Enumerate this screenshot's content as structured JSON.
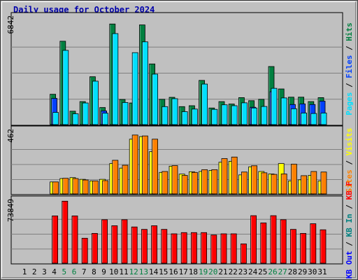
{
  "title": "Daily usage for October 2024",
  "colors": {
    "hits": "#008040",
    "files": "#0040ff",
    "pages": "#00e0ff",
    "visits": "#ffff00",
    "sites": "#ff8000",
    "kbin": "#008080",
    "kbout": "#0000ff",
    "kbf": "#ff0000",
    "title": "#0000aa",
    "day_weekday": "#000000",
    "day_weekend": "#008040"
  },
  "chart_data": [
    {
      "type": "bar",
      "name": "hits-files-pages",
      "categories": [
        "1",
        "2",
        "3",
        "4",
        "5",
        "6",
        "7",
        "8",
        "9",
        "10",
        "11",
        "12",
        "13",
        "14",
        "15",
        "16",
        "17",
        "18",
        "19",
        "20",
        "21",
        "22",
        "23",
        "24",
        "25",
        "26",
        "27",
        "28",
        "29",
        "30",
        "31"
      ],
      "weekend_days": [
        "5",
        "6",
        "12",
        "13",
        "19",
        "20",
        "26",
        "27"
      ],
      "ymax_label": "6842",
      "ylim": [
        0,
        6842
      ],
      "legend": [
        {
          "label": "Hits",
          "color_key": "hits"
        },
        {
          "label": "Files",
          "color_key": "files"
        },
        {
          "label": "Pages",
          "color_key": "pages"
        }
      ],
      "separators": [
        "/",
        "/"
      ],
      "series": [
        {
          "name": "Hits",
          "values": [
            0,
            0,
            0,
            1990,
            5470,
            880,
            1510,
            3140,
            1120,
            6600,
            1650,
            1420,
            6540,
            3980,
            1660,
            1790,
            1180,
            1240,
            2900,
            1090,
            1510,
            1350,
            1770,
            1570,
            1660,
            3810,
            2340,
            1800,
            1800,
            1510,
            1770
          ]
        },
        {
          "name": "Files",
          "values": [
            0,
            0,
            0,
            1720,
            0,
            0,
            0,
            0,
            900,
            0,
            0,
            0,
            0,
            0,
            0,
            0,
            0,
            0,
            0,
            0,
            0,
            0,
            0,
            1140,
            0,
            2160,
            0,
            1320,
            1360,
            1320,
            1540
          ]
        },
        {
          "name": "Pages",
          "values": [
            0,
            0,
            0,
            800,
            4870,
            710,
            1420,
            2850,
            750,
            5970,
            1450,
            4720,
            5430,
            3310,
            1180,
            1700,
            850,
            1020,
            2660,
            1000,
            1300,
            1240,
            1430,
            1090,
            1190,
            2380,
            1750,
            1040,
            760,
            730,
            760
          ]
        }
      ]
    },
    {
      "type": "bar",
      "name": "visits-sites",
      "categories": [
        "1",
        "2",
        "3",
        "4",
        "5",
        "6",
        "7",
        "8",
        "9",
        "10",
        "11",
        "12",
        "13",
        "14",
        "15",
        "16",
        "17",
        "18",
        "19",
        "20",
        "21",
        "22",
        "23",
        "24",
        "25",
        "26",
        "27",
        "28",
        "29",
        "30",
        "31"
      ],
      "ymax_label": "462",
      "ylim": [
        0,
        462
      ],
      "legend": [
        {
          "label": "Visits",
          "color_key": "visits"
        },
        {
          "label": "Sites",
          "color_key": "sites"
        }
      ],
      "separators": [
        "/"
      ],
      "series": [
        {
          "name": "Visits",
          "values": [
            0,
            0,
            0,
            92,
            118,
            125,
            112,
            100,
            112,
            233,
            198,
            420,
            440,
            324,
            165,
            213,
            152,
            170,
            172,
            180,
            243,
            250,
            146,
            208,
            172,
            153,
            233,
            100,
            108,
            142,
            100
          ]
        },
        {
          "name": "Sites",
          "values": [
            0,
            0,
            0,
            92,
            120,
            118,
            107,
            100,
            102,
            258,
            220,
            452,
            445,
            420,
            172,
            217,
            142,
            165,
            186,
            186,
            271,
            283,
            168,
            216,
            162,
            150,
            153,
            228,
            140,
            172,
            168
          ]
        }
      ]
    },
    {
      "type": "bar",
      "name": "kbf-kbin-kbout",
      "categories": [
        "1",
        "2",
        "3",
        "4",
        "5",
        "6",
        "7",
        "8",
        "9",
        "10",
        "11",
        "12",
        "13",
        "14",
        "15",
        "16",
        "17",
        "18",
        "19",
        "20",
        "21",
        "22",
        "23",
        "24",
        "25",
        "26",
        "27",
        "28",
        "29",
        "30",
        "31"
      ],
      "ymax_label": "73849",
      "ylim": [
        0,
        73849
      ],
      "legend": [
        {
          "label": "KB F",
          "color_key": "kbf"
        },
        {
          "label": "KB In",
          "color_key": "kbin"
        },
        {
          "label": "KB Out",
          "color_key": "kbout"
        }
      ],
      "separators": [
        "/",
        "/"
      ],
      "series": [
        {
          "name": "KB F",
          "values": [
            0,
            0,
            0,
            58700,
            77000,
            58700,
            31000,
            37000,
            54000,
            46500,
            54000,
            45000,
            42000,
            46500,
            42000,
            36500,
            38000,
            38000,
            38000,
            35000,
            36500,
            36500,
            24000,
            59000,
            50000,
            59000,
            54000,
            42000,
            37000,
            49000,
            41500
          ]
        }
      ]
    }
  ]
}
